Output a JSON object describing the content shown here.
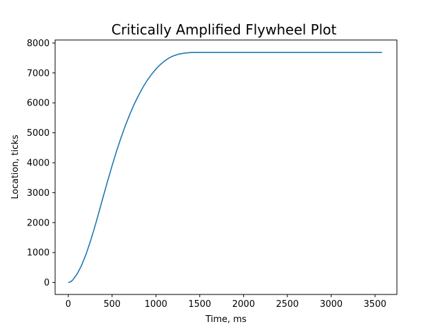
{
  "chart_data": {
    "type": "line",
    "title": "Critically Amplified Flywheel Plot",
    "xlabel": "Time, ms",
    "ylabel": "Location, ticks",
    "xlim": [
      -150,
      3750
    ],
    "ylim": [
      -400,
      8100
    ],
    "xticks": [
      0,
      500,
      1000,
      1500,
      2000,
      2500,
      3000,
      3500
    ],
    "yticks": [
      0,
      1000,
      2000,
      3000,
      4000,
      5000,
      6000,
      7000,
      8000
    ],
    "grid": false,
    "series": [
      {
        "color": "#1f77b4",
        "x": [
          0,
          25,
          50,
          100,
          150,
          200,
          250,
          300,
          350,
          400,
          450,
          500,
          550,
          600,
          650,
          700,
          750,
          800,
          850,
          900,
          950,
          1000,
          1050,
          1100,
          1150,
          1200,
          1250,
          1300,
          1350,
          1400,
          1450,
          1500,
          1600,
          1800,
          2000,
          2500,
          3000,
          3500,
          3580
        ],
        "values": [
          0,
          20,
          80,
          280,
          560,
          920,
          1350,
          1830,
          2350,
          2880,
          3400,
          3900,
          4380,
          4820,
          5230,
          5600,
          5940,
          6240,
          6510,
          6750,
          6950,
          7130,
          7280,
          7400,
          7500,
          7570,
          7620,
          7650,
          7670,
          7680,
          7685,
          7685,
          7685,
          7685,
          7685,
          7685,
          7685,
          7685,
          7685
        ]
      }
    ]
  }
}
